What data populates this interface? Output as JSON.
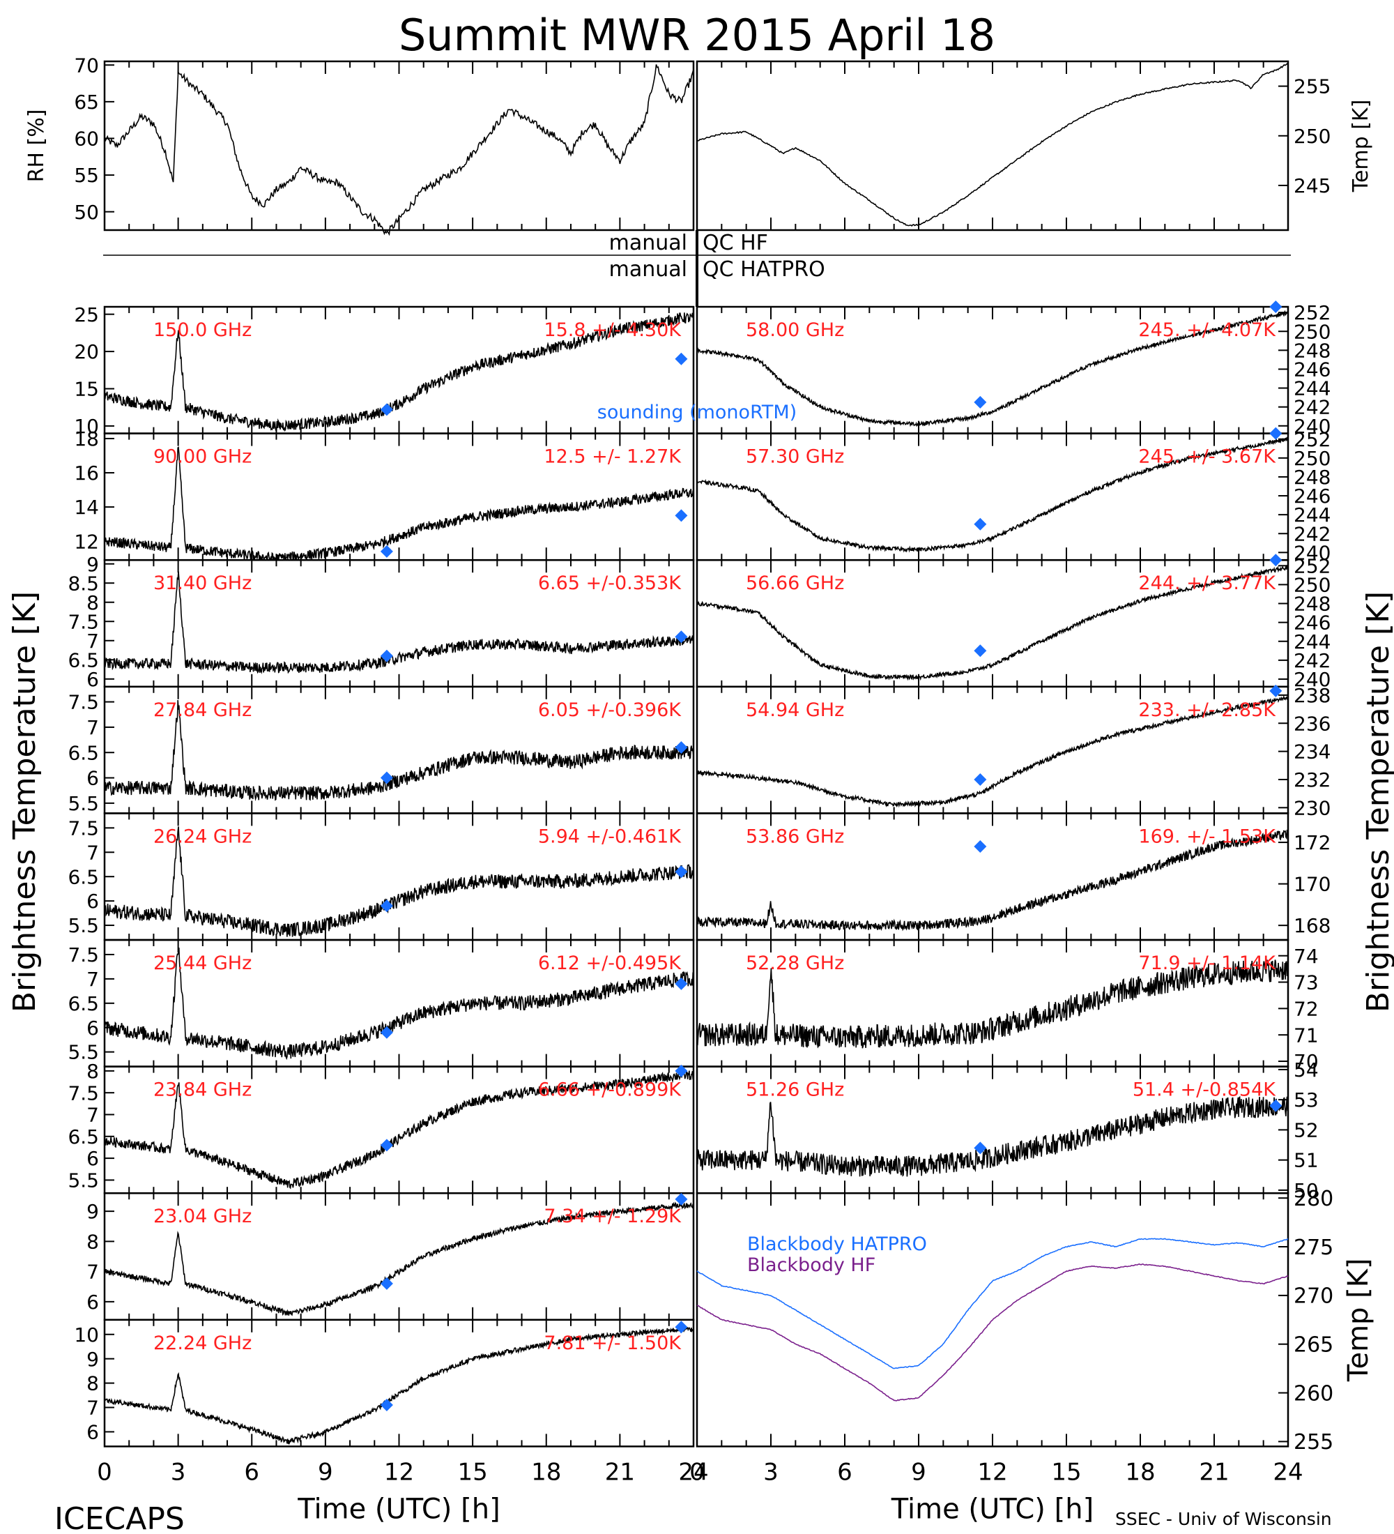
{
  "figure": {
    "title": "Summit MWR 2015 April 18",
    "footer_left": "ICECAPS",
    "footer_right": "SSEC - Univ of Wisconsin",
    "left_ylabel": "Brightness Temperature [K]",
    "right_ylabel": "Brightness Temperature [K]",
    "qc_labels": [
      {
        "left": "manual",
        "right": "QC HF"
      },
      {
        "left": "manual",
        "right": "QC HATPRO"
      }
    ],
    "sounding_label": "sounding (monoRTM)",
    "colors": {
      "trace": "#000000",
      "annotation": "#ff2020",
      "sounding": "#1a6fff",
      "bb_hatpro": "#1a6fff",
      "bb_hf": "#7a1f8c"
    }
  },
  "chart_data": [
    {
      "type": "line",
      "id": "rh",
      "ylabel": "RH [%]",
      "ylim": [
        47.5,
        70.5
      ],
      "yticks": [
        50,
        55,
        60,
        65,
        70
      ],
      "x": [
        0,
        0.5,
        1,
        1.5,
        2,
        2.5,
        2.8,
        3,
        3.3,
        3.6,
        4,
        4.5,
        5,
        5.5,
        6,
        6.5,
        7,
        7.5,
        8,
        8.5,
        9,
        9.5,
        10,
        10.5,
        11,
        11.5,
        12,
        12.5,
        13,
        13.5,
        14,
        14.5,
        15,
        15.5,
        16,
        16.5,
        17,
        17.5,
        18,
        18.5,
        19,
        19.5,
        20,
        20.5,
        21,
        21.5,
        22,
        22.5,
        23,
        23.5,
        24
      ],
      "values": [
        60,
        59,
        61,
        63,
        62,
        58,
        54,
        69,
        68,
        67,
        66,
        64,
        62,
        56,
        52,
        51,
        53,
        54,
        56,
        55,
        54,
        54,
        52,
        50,
        49,
        47,
        49,
        51,
        53,
        54,
        55,
        56,
        58,
        60,
        62,
        64,
        63,
        62,
        61,
        60,
        58,
        61,
        62,
        59,
        57,
        60,
        62,
        70,
        66,
        65,
        69
      ]
    },
    {
      "type": "line",
      "id": "temp",
      "ylabel": "Temp [K]",
      "ylim": [
        240.5,
        257.5
      ],
      "yticks": [
        245,
        250,
        255
      ],
      "x": [
        0,
        1,
        2,
        3,
        3.5,
        4,
        5,
        6,
        7,
        8,
        8.5,
        9,
        10,
        11,
        12,
        13,
        14,
        15,
        16,
        17,
        18,
        19,
        20,
        21,
        22,
        22.5,
        23,
        23.5,
        24
      ],
      "values": [
        249.5,
        250.2,
        250.4,
        249,
        248.2,
        248.8,
        247.5,
        245.2,
        243.5,
        241.7,
        241,
        241,
        242.3,
        244,
        245.8,
        247.6,
        249.4,
        251,
        252.4,
        253.4,
        254.2,
        254.7,
        255.2,
        255.4,
        255.6,
        254.8,
        256.2,
        256.6,
        257.3
      ]
    },
    {
      "type": "line",
      "id": "ch150",
      "freq": "150.0 GHz",
      "stat": "15.8 +/- 4.30K",
      "side": "left",
      "ylim": [
        9,
        26
      ],
      "yticks": [
        10,
        15,
        20,
        25
      ],
      "x": [
        0,
        1.5,
        2.7,
        3,
        3.3,
        5,
        7,
        9,
        11,
        12,
        13,
        15,
        17,
        19,
        21,
        22,
        23.5
      ],
      "values": [
        14,
        13,
        12.5,
        23,
        12.5,
        11,
        10,
        10.5,
        11.5,
        13,
        15,
        18,
        19.5,
        21,
        23,
        23.5,
        24.5
      ],
      "noise": 1.5,
      "sounding": [
        11.5,
        12.2,
        23.5,
        19
      ]
    },
    {
      "type": "line",
      "id": "ch90",
      "freq": "90.00 GHz",
      "stat": "12.5 +/- 1.27K",
      "side": "left",
      "ylim": [
        10.9,
        18.3
      ],
      "yticks": [
        12,
        14,
        16,
        18
      ],
      "x": [
        0,
        2.7,
        3,
        3.3,
        5,
        7,
        9,
        11,
        13,
        15,
        17,
        19,
        21,
        23.5
      ],
      "values": [
        12,
        11.6,
        17.5,
        11.6,
        11.3,
        11,
        11.3,
        11.8,
        12.8,
        13.4,
        13.8,
        14,
        14.3,
        14.8
      ],
      "noise": 0.6,
      "sounding": [
        11.5,
        11.4,
        23.5,
        13.5
      ]
    },
    {
      "type": "line",
      "id": "ch3140",
      "freq": "31.40 GHz",
      "stat": "6.65 +/-0.353K",
      "side": "left",
      "ylim": [
        5.8,
        9.1
      ],
      "yticks": [
        6.0,
        6.5,
        7.0,
        7.5,
        8.0,
        8.5,
        9.0
      ],
      "x": [
        0,
        2.7,
        3,
        3.3,
        6,
        9,
        11,
        13,
        15,
        17,
        19,
        21,
        23.5
      ],
      "values": [
        6.4,
        6.4,
        8.8,
        6.4,
        6.3,
        6.3,
        6.4,
        6.7,
        6.9,
        6.9,
        6.8,
        6.9,
        7.0
      ],
      "noise": 0.28,
      "sounding": [
        11.5,
        6.6,
        23.5,
        7.1
      ]
    },
    {
      "type": "line",
      "id": "ch2784",
      "freq": "27.84 GHz",
      "stat": "6.05 +/-0.396K",
      "side": "left",
      "ylim": [
        5.3,
        7.8
      ],
      "yticks": [
        5.5,
        6.0,
        6.5,
        7.0,
        7.5
      ],
      "x": [
        0,
        2.7,
        3,
        3.3,
        6,
        9,
        11,
        13,
        15,
        17,
        19,
        21,
        23.5
      ],
      "values": [
        5.8,
        5.8,
        7.5,
        5.8,
        5.7,
        5.7,
        5.8,
        6.1,
        6.4,
        6.4,
        6.3,
        6.5,
        6.5
      ],
      "noise": 0.28,
      "sounding": [
        11.5,
        6.0,
        23.5,
        6.6
      ]
    },
    {
      "type": "line",
      "id": "ch2624",
      "freq": "26.24 GHz",
      "stat": "5.94 +/-0.461K",
      "side": "left",
      "ylim": [
        5.2,
        7.8
      ],
      "yticks": [
        5.5,
        6.0,
        6.5,
        7.0,
        7.5
      ],
      "x": [
        0,
        2.7,
        3,
        3.3,
        6,
        7.5,
        9,
        11,
        13,
        15,
        17,
        19,
        21,
        23.5
      ],
      "values": [
        5.8,
        5.7,
        7.5,
        5.7,
        5.5,
        5.4,
        5.5,
        5.8,
        6.2,
        6.4,
        6.4,
        6.4,
        6.5,
        6.6
      ],
      "noise": 0.3,
      "sounding": [
        11.5,
        5.9,
        23.5,
        6.6
      ]
    },
    {
      "type": "line",
      "id": "ch2544",
      "freq": "25.44 GHz",
      "stat": "6.12 +/-0.495K",
      "side": "left",
      "ylim": [
        5.2,
        7.8
      ],
      "yticks": [
        5.5,
        6.0,
        6.5,
        7.0,
        7.5
      ],
      "x": [
        0,
        2.7,
        3,
        3.3,
        6,
        7.5,
        9,
        11,
        13,
        15,
        17,
        19,
        21,
        23.5
      ],
      "values": [
        6.0,
        5.8,
        7.7,
        5.8,
        5.6,
        5.5,
        5.6,
        5.9,
        6.3,
        6.5,
        6.5,
        6.6,
        6.8,
        7.0
      ],
      "noise": 0.3,
      "sounding": [
        11.5,
        5.9,
        23.5,
        6.9
      ]
    },
    {
      "type": "line",
      "id": "ch2384",
      "freq": "23.84 GHz",
      "stat": "6.66 +/-0.899K",
      "side": "left",
      "ylim": [
        5.2,
        8.1
      ],
      "yticks": [
        5.5,
        6.0,
        6.5,
        7.0,
        7.5,
        8.0
      ],
      "x": [
        0,
        2.7,
        3,
        3.3,
        6,
        7.5,
        9,
        11,
        13,
        15,
        17,
        19,
        21,
        23.5
      ],
      "values": [
        6.4,
        6.2,
        7.8,
        6.2,
        5.7,
        5.4,
        5.6,
        6.1,
        6.8,
        7.3,
        7.5,
        7.6,
        7.7,
        7.9
      ],
      "noise": 0.22,
      "sounding": [
        11.5,
        6.3,
        23.5,
        8.0
      ]
    },
    {
      "type": "line",
      "id": "ch2304",
      "freq": "23.04 GHz",
      "stat": "7.34 +/- 1.29K",
      "side": "left",
      "ylim": [
        5.4,
        9.6
      ],
      "yticks": [
        6,
        7,
        8,
        9
      ],
      "x": [
        0,
        2.7,
        3,
        3.3,
        6,
        7.5,
        9,
        11,
        13,
        15,
        17,
        19,
        21,
        23.5
      ],
      "values": [
        7.0,
        6.6,
        8.3,
        6.6,
        6.0,
        5.6,
        5.9,
        6.5,
        7.5,
        8.1,
        8.5,
        8.8,
        9.0,
        9.2
      ],
      "noise": 0.18,
      "sounding": [
        11.5,
        6.6,
        23.5,
        9.4
      ]
    },
    {
      "type": "line",
      "id": "ch2224",
      "freq": "22.24 GHz",
      "stat": "7.81 +/- 1.50K",
      "side": "left",
      "ylim": [
        5.4,
        10.6
      ],
      "yticks": [
        6,
        7,
        8,
        9,
        10
      ],
      "x": [
        0,
        2.7,
        3,
        3.3,
        6,
        7.5,
        9,
        11,
        13,
        15,
        17,
        19,
        21,
        23.5
      ],
      "values": [
        7.3,
        6.9,
        8.4,
        6.9,
        6.1,
        5.6,
        6.0,
        6.9,
        8.2,
        9.0,
        9.4,
        9.8,
        10.0,
        10.2
      ],
      "noise": 0.2,
      "sounding": [
        11.5,
        7.1,
        23.5,
        10.3
      ]
    },
    {
      "type": "line",
      "id": "ch5800",
      "freq": "58.00 GHz",
      "stat": "245. +/- 4.07K",
      "side": "right",
      "ylim": [
        239.2,
        252.6
      ],
      "yticks": [
        240,
        242,
        244,
        246,
        248,
        250,
        252
      ],
      "x": [
        0,
        1.5,
        2.5,
        3.5,
        5,
        7,
        9,
        11,
        12,
        14,
        16,
        18,
        20,
        22,
        24
      ],
      "values": [
        248,
        247.5,
        247,
        244.5,
        242,
        240.5,
        240.2,
        240.8,
        241.5,
        244,
        246.5,
        248.2,
        249.5,
        250.8,
        252
      ],
      "noise": 0.4,
      "sounding": [
        11.5,
        242.5,
        23.5,
        253
      ]
    },
    {
      "type": "line",
      "id": "ch5730",
      "freq": "57.30 GHz",
      "stat": "245. +/- 3.67K",
      "side": "right",
      "ylim": [
        239.2,
        252.6
      ],
      "yticks": [
        240,
        242,
        244,
        246,
        248,
        250,
        252
      ],
      "x": [
        0,
        1.5,
        2.5,
        3.5,
        5,
        7,
        9,
        11,
        12,
        14,
        16,
        18,
        20,
        22,
        24
      ],
      "values": [
        247.5,
        247,
        246.5,
        244,
        241.5,
        240.5,
        240.3,
        240.8,
        241.5,
        244,
        246.5,
        248.5,
        250,
        251,
        252
      ],
      "noise": 0.4,
      "sounding": [
        11.5,
        243,
        23.5,
        253
      ]
    },
    {
      "type": "line",
      "id": "ch5666",
      "freq": "56.66 GHz",
      "stat": "244. +/- 3.77K",
      "side": "right",
      "ylim": [
        239.2,
        252.6
      ],
      "yticks": [
        240,
        242,
        244,
        246,
        248,
        250,
        252
      ],
      "x": [
        0,
        1.5,
        2.5,
        3.5,
        5,
        7,
        9,
        11,
        12,
        14,
        16,
        18,
        20,
        22,
        24
      ],
      "values": [
        248,
        247.5,
        247,
        244.5,
        241.5,
        240.3,
        240.2,
        240.8,
        241.5,
        244,
        246.5,
        248.3,
        249.6,
        250.8,
        251.8
      ],
      "noise": 0.4,
      "sounding": [
        11.5,
        243,
        23.5,
        253
      ]
    },
    {
      "type": "line",
      "id": "ch5494",
      "freq": "54.94 GHz",
      "stat": "233. +/- 2.85K",
      "side": "right",
      "ylim": [
        229.6,
        238.6
      ],
      "yticks": [
        230,
        232,
        234,
        236,
        238
      ],
      "x": [
        0,
        2,
        4,
        6,
        8,
        10,
        11.5,
        13,
        15,
        17,
        19,
        21,
        24
      ],
      "values": [
        232.5,
        232.2,
        231.8,
        230.8,
        230.2,
        230.4,
        231,
        232.5,
        234,
        235.2,
        236,
        236.8,
        237.8
      ],
      "noise": 0.3,
      "sounding": [
        11.5,
        232,
        23.5,
        238.3
      ]
    },
    {
      "type": "line",
      "id": "ch5386",
      "freq": "53.86 GHz",
      "stat": "169. +/- 1.53K",
      "side": "right",
      "ylim": [
        167.3,
        173.4
      ],
      "yticks": [
        168,
        170,
        172
      ],
      "x": [
        0,
        2.8,
        3,
        3.2,
        6,
        9,
        11.5,
        13,
        15,
        17,
        19,
        21,
        24
      ],
      "values": [
        168.2,
        168.1,
        169,
        168.1,
        168,
        168,
        168.2,
        168.8,
        169.5,
        170.2,
        171,
        171.8,
        172.4
      ],
      "noise": 0.45,
      "sounding": [
        11.5,
        171.8
      ]
    },
    {
      "type": "line",
      "id": "ch5228",
      "freq": "52.28 GHz",
      "stat": "71.9 +/- 1.14K",
      "side": "right",
      "ylim": [
        69.8,
        74.6
      ],
      "yticks": [
        70,
        71,
        72,
        73,
        74
      ],
      "x": [
        0,
        2.8,
        3,
        3.2,
        6,
        9,
        11.5,
        13,
        15,
        17,
        19,
        21,
        24
      ],
      "values": [
        71.0,
        71.0,
        73.5,
        71.0,
        70.9,
        71.0,
        71.1,
        71.5,
        72.0,
        72.6,
        73.0,
        73.3,
        73.5
      ],
      "noise": 0.9,
      "sounding": []
    },
    {
      "type": "line",
      "id": "ch5126",
      "freq": "51.26 GHz",
      "stat": "51.4 +/-0.854K",
      "side": "right",
      "ylim": [
        49.9,
        54.1
      ],
      "yticks": [
        50,
        51,
        52,
        53,
        54
      ],
      "x": [
        0,
        2.8,
        3,
        3.2,
        6,
        9,
        11.5,
        13,
        15,
        17,
        19,
        21,
        24
      ],
      "values": [
        51.0,
        51.0,
        53.0,
        51.0,
        50.8,
        50.8,
        51.0,
        51.3,
        51.6,
        52.0,
        52.4,
        52.7,
        52.8
      ],
      "noise": 0.7,
      "sounding": [
        11.5,
        51.4,
        23.5,
        52.8
      ]
    },
    {
      "type": "line",
      "id": "blackbody",
      "ylabel": "Temp [K]",
      "ylim": [
        254.5,
        280.5
      ],
      "yticks": [
        255,
        260,
        265,
        270,
        275,
        280
      ],
      "series": [
        {
          "name": "Blackbody HATPRO",
          "x": [
            0,
            1,
            2,
            3,
            4,
            5,
            6,
            7,
            8,
            9,
            10,
            11,
            12,
            13,
            14,
            15,
            16,
            17,
            18,
            19,
            20,
            21,
            22,
            23,
            24
          ],
          "values": [
            272.5,
            271,
            270.5,
            270,
            268.5,
            267,
            265.5,
            264,
            262.5,
            262.8,
            265,
            268.5,
            271.5,
            272.5,
            274,
            275,
            275.5,
            275,
            275.8,
            275.8,
            275.5,
            275.2,
            275.4,
            275,
            275.8
          ]
        },
        {
          "name": "Blackbody HF",
          "x": [
            0,
            1,
            2,
            3,
            4,
            5,
            6,
            7,
            8,
            9,
            10,
            11,
            12,
            13,
            14,
            15,
            16,
            17,
            18,
            19,
            20,
            21,
            22,
            23,
            24
          ],
          "values": [
            269,
            267.5,
            267,
            266.5,
            265,
            264,
            262.5,
            261,
            259.2,
            259.5,
            261.8,
            264.5,
            267.5,
            269.5,
            271,
            272.5,
            273,
            272.8,
            273.2,
            273,
            272.5,
            272,
            271.5,
            271.2,
            272
          ]
        }
      ]
    },
    {
      "type": "axis",
      "id": "time_axis",
      "xlabel": "Time (UTC) [h]",
      "xlim": [
        0,
        24
      ],
      "xticks": [
        0,
        3,
        6,
        9,
        12,
        15,
        18,
        21,
        24
      ],
      "xticklabels": [
        "0",
        "3",
        "6",
        "9",
        "12",
        "15",
        "18",
        "21",
        "24"
      ]
    }
  ]
}
